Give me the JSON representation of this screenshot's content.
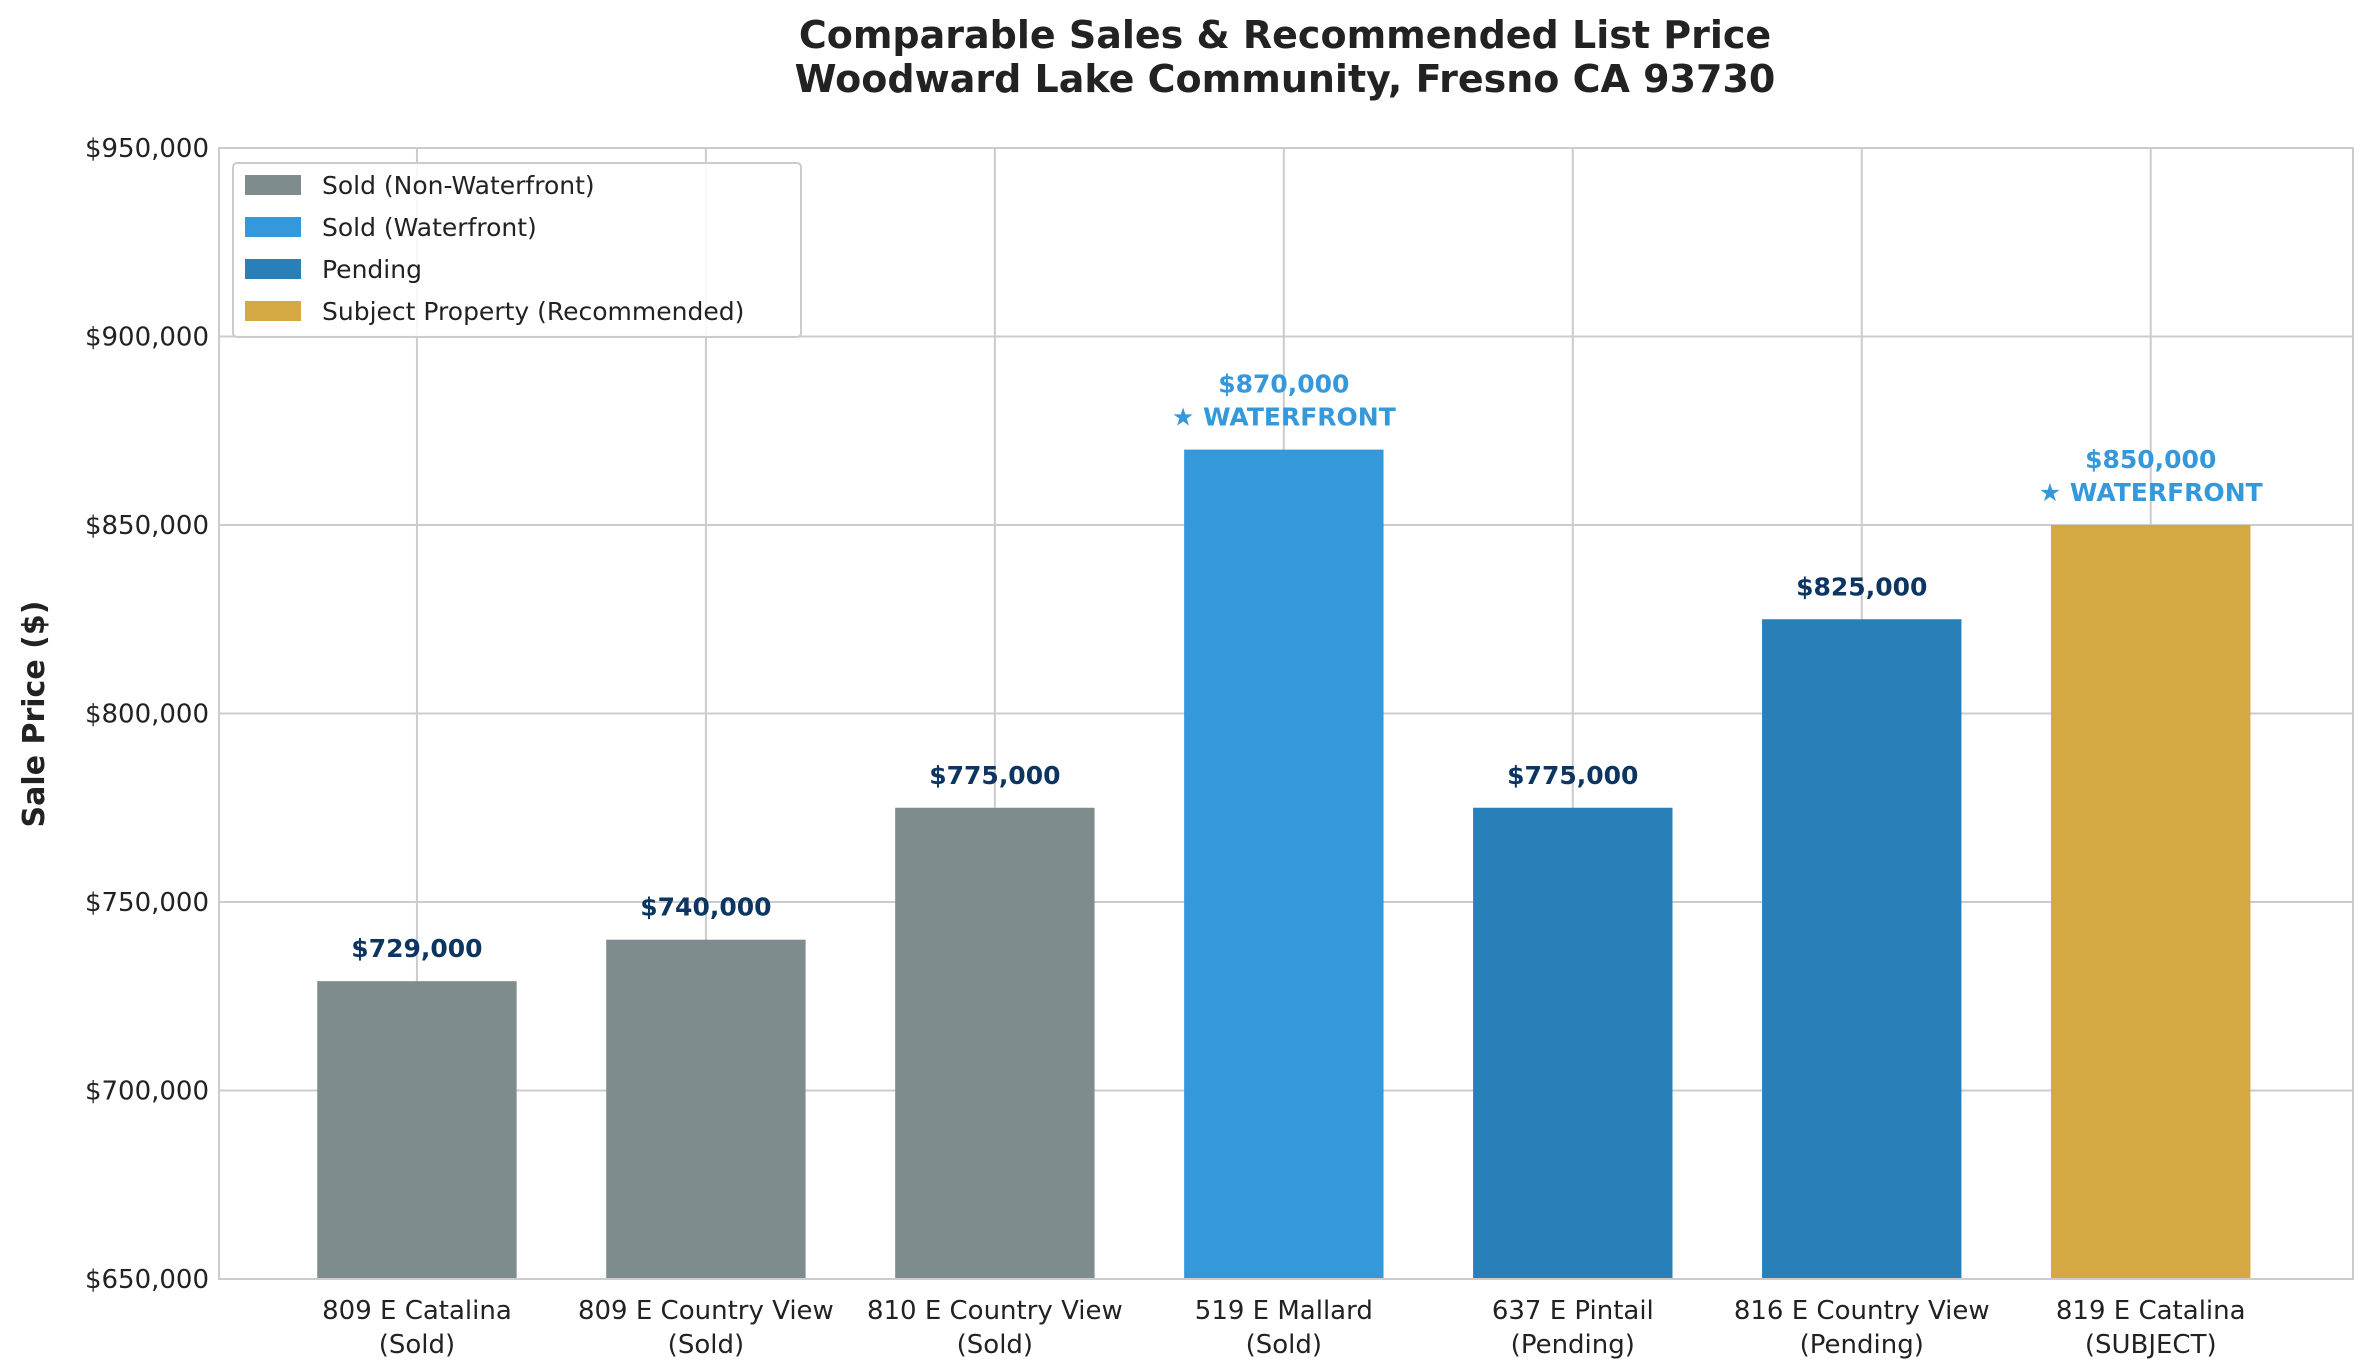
{
  "chart_data": {
    "type": "bar",
    "title": "Comparable Sales & Recommended List Price",
    "subtitle": "Woodward Lake Community, Fresno CA 93730",
    "xlabel": "",
    "ylabel": "Sale Price ($)",
    "ylim": [
      650000,
      950000
    ],
    "yticks": [
      "$650,000",
      "$700,000",
      "$750,000",
      "$800,000",
      "$850,000",
      "$900,000",
      "$950,000"
    ],
    "ytick_values": [
      650000,
      700000,
      750000,
      800000,
      850000,
      900000,
      950000
    ],
    "grid": true,
    "legend_position": "top-left",
    "categories": [
      [
        "809 E Catalina",
        "(Sold)"
      ],
      [
        "809 E Country View",
        "(Sold)"
      ],
      [
        "810 E Country View",
        "(Sold)"
      ],
      [
        "519 E Mallard",
        "(Sold)"
      ],
      [
        "637 E Pintail",
        "(Pending)"
      ],
      [
        "816 E Country View",
        "(Pending)"
      ],
      [
        "819 E Catalina",
        "(SUBJECT)"
      ]
    ],
    "values": [
      729000,
      740000,
      775000,
      870000,
      775000,
      825000,
      850000
    ],
    "groups": [
      0,
      0,
      0,
      1,
      2,
      2,
      3
    ],
    "data_labels": [
      "$729,000",
      "$740,000",
      "$775,000",
      "$870,000",
      "$775,000",
      "$825,000",
      "$850,000"
    ],
    "waterfront_note": "★ WATERFRONT",
    "waterfront": [
      false,
      false,
      false,
      true,
      false,
      false,
      true
    ],
    "legend": [
      {
        "label": "Sold (Non-Waterfront)",
        "color": "#7f8c8d"
      },
      {
        "label": "Sold (Waterfront)",
        "color": "#3498db"
      },
      {
        "label": "Pending",
        "color": "#2980b9"
      },
      {
        "label": "Subject Property (Recommended)",
        "color": "#d4a843"
      }
    ],
    "label_colors": {
      "default": "#0d3561",
      "waterfront": "#3498db"
    }
  }
}
